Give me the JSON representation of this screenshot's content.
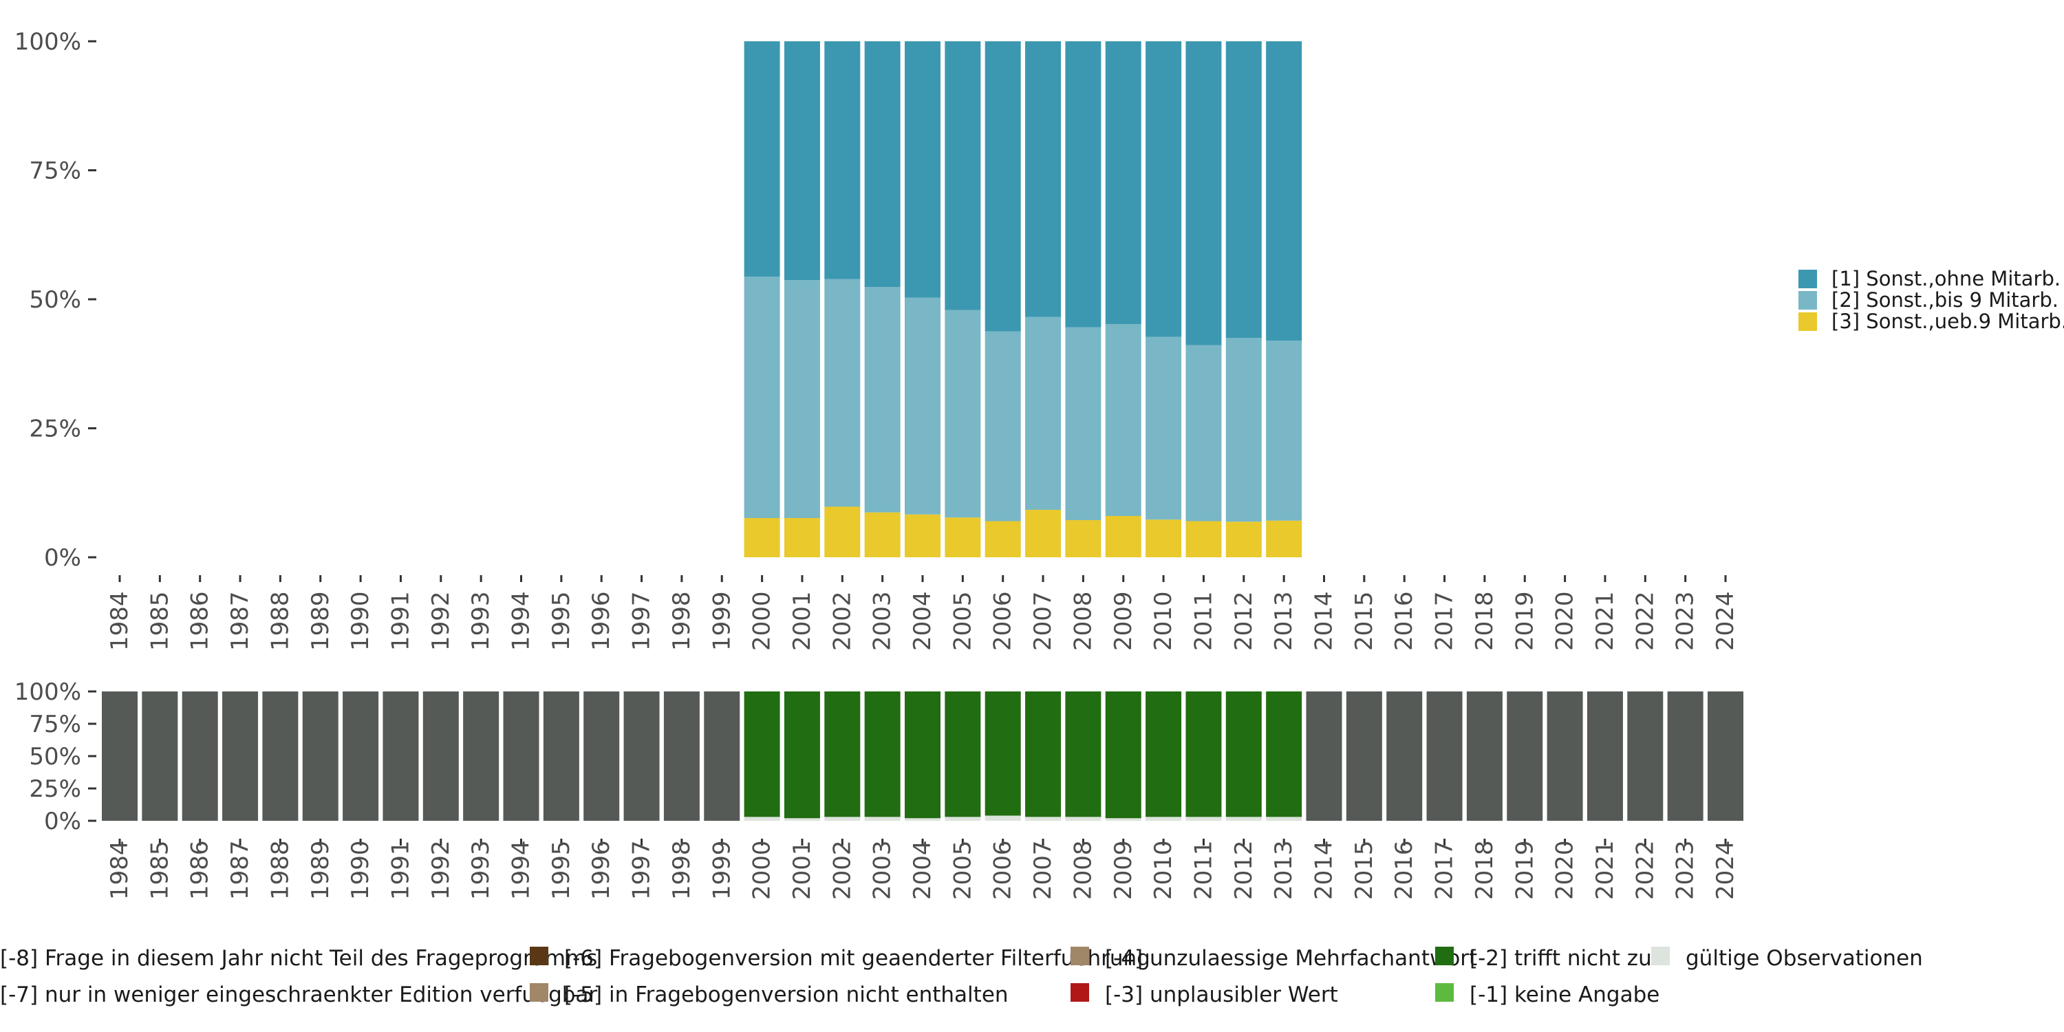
{
  "colors": {
    "ohne": "#3c98b1",
    "bis9": "#79b7c6",
    "ueb9": "#e9c92c",
    "m8": "#555a56",
    "m7": "#8f9a8f",
    "m6": "#5b3815",
    "m5": "#a08768",
    "m4": "#a08768",
    "m3": "#b01818",
    "m2": "#216d12",
    "m1": "#5cbb3f",
    "valid": "#dde3dd",
    "axis_text": "#4d4d4d"
  },
  "chart_data": [
    {
      "type": "bar",
      "stacked": true,
      "name": "top",
      "years": [
        "1984",
        "1985",
        "1986",
        "1987",
        "1988",
        "1989",
        "1990",
        "1991",
        "1992",
        "1993",
        "1994",
        "1995",
        "1996",
        "1997",
        "1998",
        "1999",
        "2000",
        "2001",
        "2002",
        "2003",
        "2004",
        "2005",
        "2006",
        "2007",
        "2008",
        "2009",
        "2010",
        "2011",
        "2012",
        "2013",
        "2014",
        "2015",
        "2016",
        "2017",
        "2018",
        "2019",
        "2020",
        "2021",
        "2022",
        "2023",
        "2024"
      ],
      "y_ticks": [
        "0%",
        "25%",
        "50%",
        "75%",
        "100%"
      ],
      "ylim": [
        0,
        100
      ],
      "legend_position": "right",
      "series": [
        {
          "name": "[3] Sonst.,ueb.9 Mitarb.",
          "color_key": "ueb9",
          "values": [
            null,
            null,
            null,
            null,
            null,
            null,
            null,
            null,
            null,
            null,
            null,
            null,
            null,
            null,
            null,
            null,
            7.6,
            7.6,
            9.8,
            8.7,
            8.3,
            7.7,
            7.0,
            9.2,
            7.2,
            8.0,
            7.3,
            7.0,
            6.9,
            7.1,
            null,
            null,
            null,
            null,
            null,
            null,
            null,
            null,
            null,
            null,
            null
          ]
        },
        {
          "name": "[2] Sonst.,bis 9 Mitarb.",
          "color_key": "bis9",
          "values": [
            null,
            null,
            null,
            null,
            null,
            null,
            null,
            null,
            null,
            null,
            null,
            null,
            null,
            null,
            null,
            null,
            46.8,
            46.1,
            44.1,
            43.7,
            42.0,
            40.2,
            36.8,
            37.4,
            37.4,
            37.2,
            35.4,
            34.1,
            35.6,
            34.9,
            null,
            null,
            null,
            null,
            null,
            null,
            null,
            null,
            null,
            null,
            null
          ]
        },
        {
          "name": "[1] Sonst.,ohne Mitarb.",
          "color_key": "ohne",
          "values": [
            null,
            null,
            null,
            null,
            null,
            null,
            null,
            null,
            null,
            null,
            null,
            null,
            null,
            null,
            null,
            null,
            45.6,
            46.3,
            46.1,
            47.6,
            49.7,
            52.1,
            56.2,
            53.4,
            55.4,
            54.8,
            57.3,
            58.9,
            57.5,
            58.0,
            null,
            null,
            null,
            null,
            null,
            null,
            null,
            null,
            null,
            null,
            null
          ]
        }
      ]
    },
    {
      "type": "bar",
      "stacked": true,
      "name": "bottom",
      "y_ticks": [
        "0%",
        "25%",
        "50%",
        "75%",
        "100%"
      ],
      "ylim": [
        0,
        100
      ],
      "series": [
        {
          "name": "gültige Observationen",
          "color_key": "valid",
          "values": [
            0,
            0,
            0,
            0,
            0,
            0,
            0,
            0,
            0,
            0,
            0,
            0,
            0,
            0,
            0,
            0,
            3,
            2,
            3,
            3,
            2,
            3,
            4,
            3,
            3,
            2,
            3,
            3,
            3,
            3,
            0,
            0,
            0,
            0,
            0,
            0,
            0,
            0,
            0,
            0,
            0
          ]
        },
        {
          "name": "[-2] trifft nicht zu",
          "color_key": "m2",
          "values": [
            0,
            0,
            0,
            0,
            0,
            0,
            0,
            0,
            0,
            0,
            0,
            0,
            0,
            0,
            0,
            0,
            97,
            98,
            97,
            97,
            98,
            97,
            96,
            97,
            97,
            98,
            97,
            97,
            97,
            97,
            0,
            0,
            0,
            0,
            0,
            0,
            0,
            0,
            0,
            0,
            0
          ]
        },
        {
          "name": "[-8] Frage in diesem Jahr nicht Teil des Frageprogramms",
          "color_key": "m8",
          "values": [
            100,
            100,
            100,
            100,
            100,
            100,
            100,
            100,
            100,
            100,
            100,
            100,
            100,
            100,
            100,
            100,
            0,
            0,
            0,
            0,
            0,
            0,
            0,
            0,
            0,
            0,
            0,
            0,
            0,
            0,
            100,
            100,
            100,
            100,
            100,
            100,
            100,
            100,
            100,
            100,
            100
          ]
        }
      ],
      "legend": [
        {
          "label": "[-8] Frage in diesem Jahr nicht Teil des Frageprogramms",
          "color_key": "m8"
        },
        {
          "label": "[-6] Fragebogenversion mit geaenderter Filterfuehrung",
          "color_key": "m6"
        },
        {
          "label": "[-4] unzulaessige Mehrfachantwort",
          "color_key": "m4"
        },
        {
          "label": "[-2] trifft nicht zu",
          "color_key": "m2"
        },
        {
          "label": "gültige Observationen",
          "color_key": "valid"
        },
        {
          "label": "[-7] nur in weniger eingeschraenkter Edition verfuegbar",
          "color_key": "m7"
        },
        {
          "label": "[-5] in Fragebogenversion nicht enthalten",
          "color_key": "m5"
        },
        {
          "label": "[-3] unplausibler Wert",
          "color_key": "m3"
        },
        {
          "label": "[-1] keine Angabe",
          "color_key": "m1"
        }
      ]
    }
  ]
}
